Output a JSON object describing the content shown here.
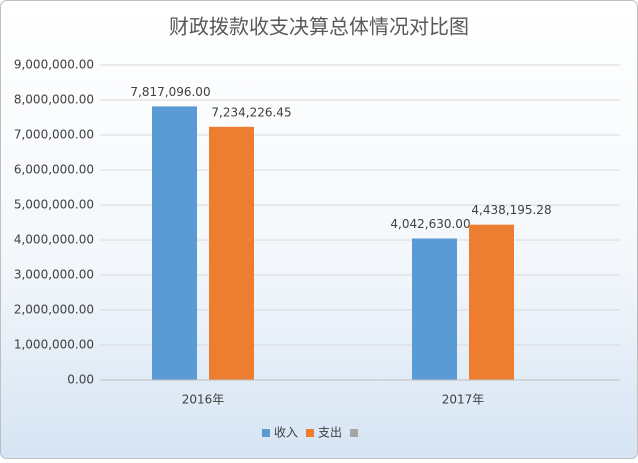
{
  "chart_data": {
    "type": "bar",
    "title": "财政拨款收支决算总体情况对比图",
    "categories": [
      "2016年",
      "2017年"
    ],
    "series": [
      {
        "name": "收入",
        "color": "#5b9bd5",
        "values": [
          7817096.0,
          4042630.0
        ],
        "value_labels": [
          "7,817,096.00",
          "4,042,630.00"
        ]
      },
      {
        "name": "支出",
        "color": "#ed7d31",
        "values": [
          7234226.45,
          4438195.28
        ],
        "value_labels": [
          "7,234,226.45",
          "4,438,195.28"
        ]
      },
      {
        "name": null,
        "color": "#a5a5a5",
        "values": [
          null,
          null
        ]
      }
    ],
    "ylim": [
      0,
      9000000
    ],
    "yticks": [
      {
        "value": 0,
        "label": "0.00"
      },
      {
        "value": 1000000,
        "label": "1,000,000.00"
      },
      {
        "value": 2000000,
        "label": "2,000,000.00"
      },
      {
        "value": 3000000,
        "label": "3,000,000.00"
      },
      {
        "value": 4000000,
        "label": "4,000,000.00"
      },
      {
        "value": 5000000,
        "label": "5,000,000.00"
      },
      {
        "value": 6000000,
        "label": "6,000,000.00"
      },
      {
        "value": 7000000,
        "label": "7,000,000.00"
      },
      {
        "value": 8000000,
        "label": "8,000,000.00"
      },
      {
        "value": 9000000,
        "label": "9,000,000.00"
      }
    ],
    "grid": true,
    "legend": "bottom"
  }
}
